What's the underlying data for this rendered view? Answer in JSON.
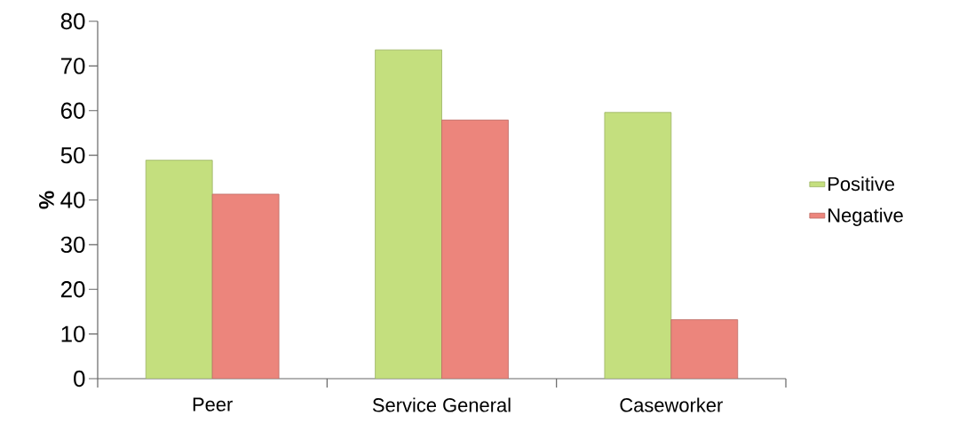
{
  "chart_data": {
    "type": "bar",
    "ylabel": "%",
    "categories": [
      "Peer",
      "Service General",
      "Caseworker"
    ],
    "series": [
      {
        "name": "Positive",
        "color": "#c4df7e",
        "values": [
          48.9,
          73.6,
          59.6
        ]
      },
      {
        "name": "Negative",
        "color": "#ec857c",
        "values": [
          41.3,
          57.9,
          13.2
        ]
      }
    ],
    "ylim": [
      0,
      80
    ],
    "yticks": [
      0,
      10,
      20,
      30,
      40,
      50,
      60,
      70,
      80
    ],
    "legend": "right"
  }
}
